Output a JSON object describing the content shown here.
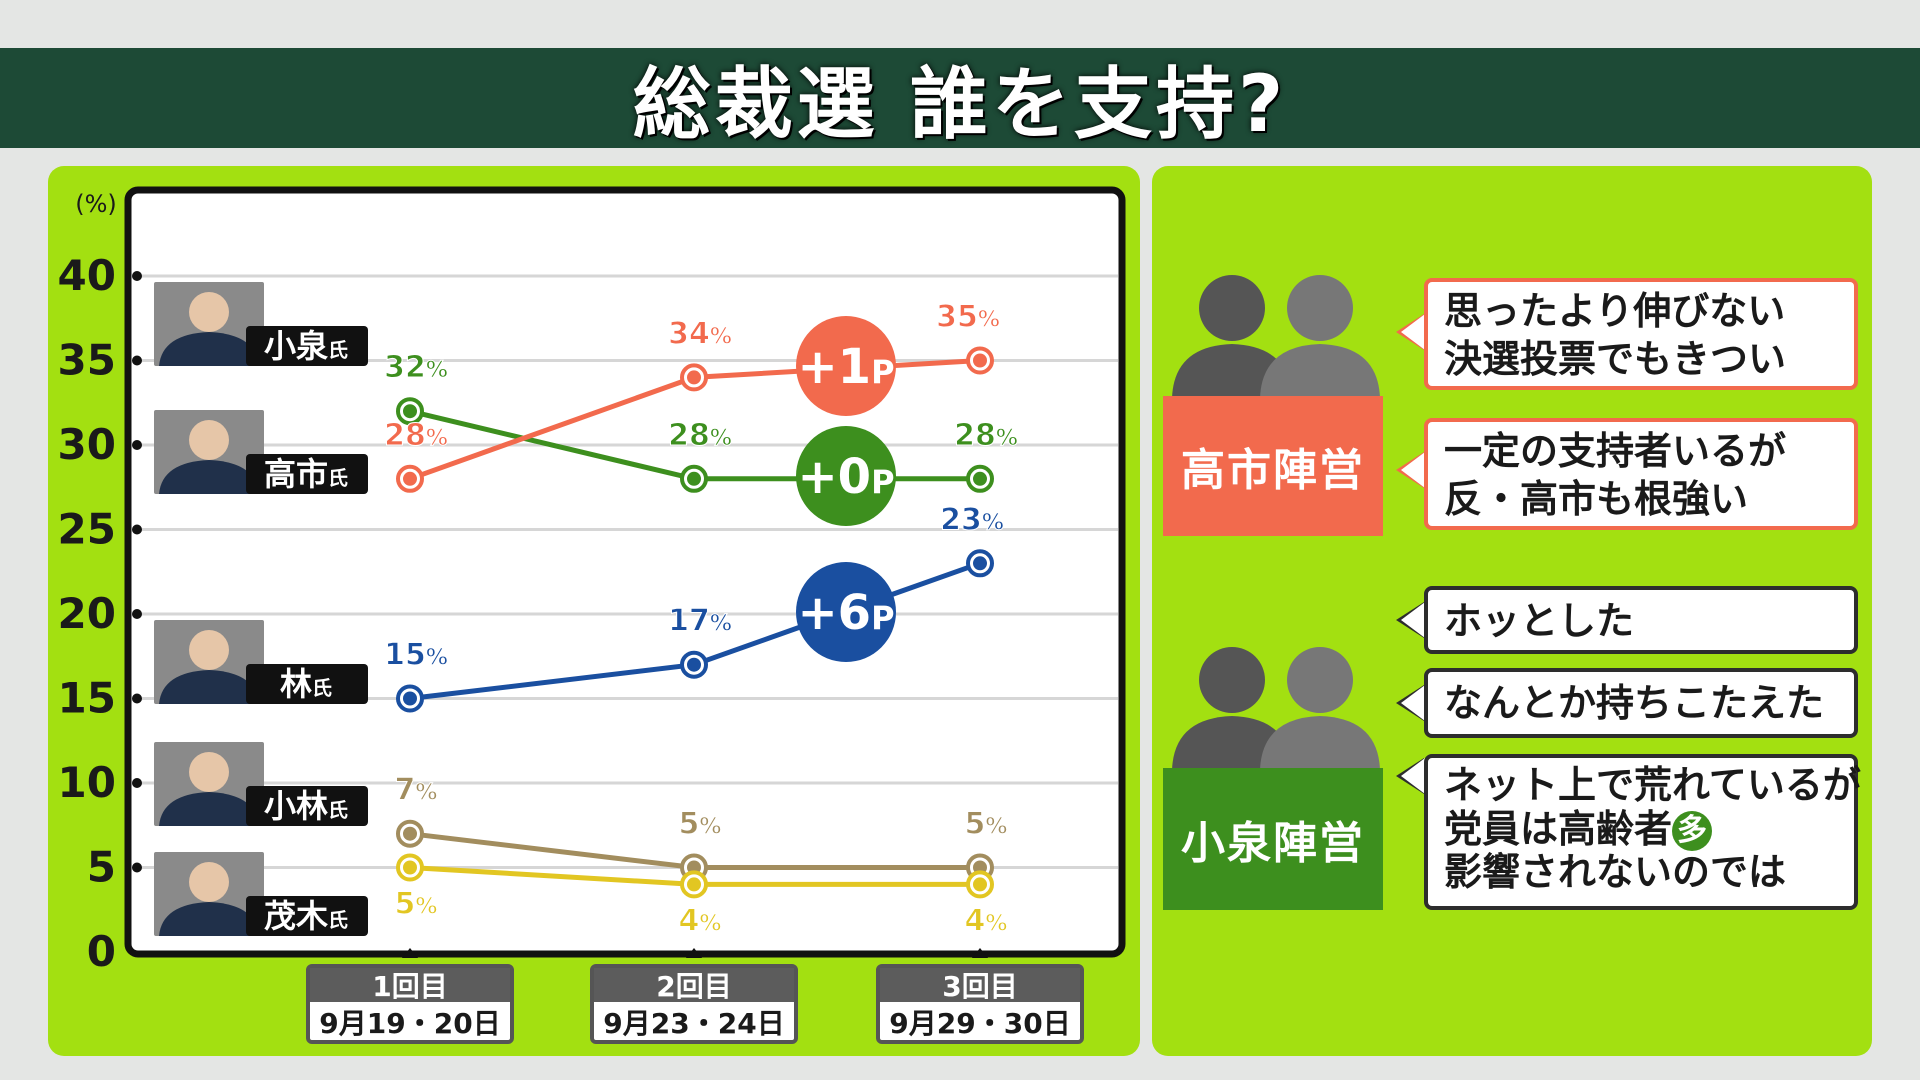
{
  "title": "総裁選 誰を支持?",
  "chart_data": {
    "type": "line",
    "yunit": "(%)",
    "ylim": [
      0,
      40
    ],
    "yticks": [
      0,
      5,
      10,
      15,
      20,
      25,
      30,
      35,
      40
    ],
    "grid": true,
    "categories": [
      {
        "round": "1回目",
        "date": "9月19・20日"
      },
      {
        "round": "2回目",
        "date": "9月23・24日"
      },
      {
        "round": "3回目",
        "date": "9月29・30日"
      }
    ],
    "series": [
      {
        "name": "小泉",
        "suffix": "氏",
        "color": "#3d8f1e",
        "values": [
          32,
          28,
          28
        ],
        "labels": [
          "32%",
          "28%",
          "28%"
        ]
      },
      {
        "name": "高市",
        "suffix": "氏",
        "color": "#f26a4d",
        "values": [
          28,
          34,
          35
        ],
        "labels": [
          "28%",
          "34%",
          "35%"
        ]
      },
      {
        "name": "林",
        "suffix": "氏",
        "color": "#1a4fa0",
        "values": [
          15,
          17,
          23
        ],
        "labels": [
          "15%",
          "17%",
          "23%"
        ]
      },
      {
        "name": "小林",
        "suffix": "氏",
        "color": "#a28d5e",
        "values": [
          7,
          5,
          5
        ],
        "labels": [
          "7%",
          "5%",
          "5%"
        ]
      },
      {
        "name": "茂木",
        "suffix": "氏",
        "color": "#e2c622",
        "values": [
          5,
          4,
          4
        ],
        "labels": [
          "5%",
          "4%",
          "4%"
        ]
      }
    ],
    "annotations": [
      {
        "text": "+1P",
        "color": "#f26a4d"
      },
      {
        "text": "+0P",
        "color": "#3d8f1e"
      },
      {
        "text": "+6P",
        "color": "#1a4fa0"
      }
    ]
  },
  "camps": [
    {
      "label": "高市陣営",
      "color": "#f26a4d",
      "comments": [
        [
          "思ったより伸びない",
          "決選投票でもきつい"
        ],
        [
          "一定の支持者いるが",
          "反・高市も根強い"
        ]
      ]
    },
    {
      "label": "小泉陣営",
      "color": "#3d8f1e",
      "comments": [
        [
          "ホッとした"
        ],
        [
          "なんとか持ちこたえた"
        ],
        [
          "ネット上で荒れているが",
          "党員は高齢者",
          "影響されないのでは"
        ]
      ],
      "badge": "多"
    }
  ]
}
